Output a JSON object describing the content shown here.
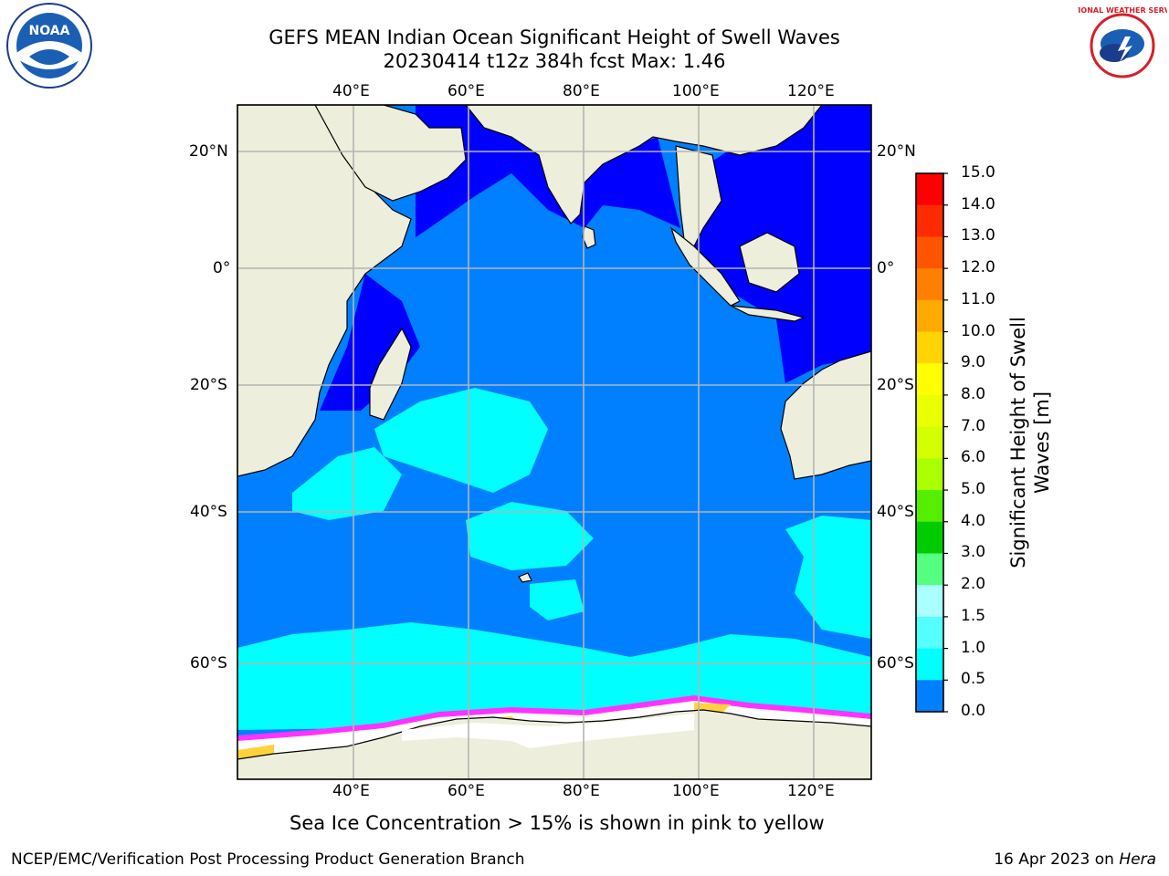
{
  "title": {
    "line1": "GEFS MEAN Indian Ocean Significant Height of Swell Waves",
    "line2": "20230414 t12z 384h fcst   Max: 1.46"
  },
  "logos": {
    "left": {
      "icon": "noaa-logo-icon",
      "text": "NOAA"
    },
    "right": {
      "icon": "nws-logo-icon",
      "text": "NATIONAL WEATHER SERVICE"
    }
  },
  "map": {
    "lon_ticks": [
      "40°E",
      "60°E",
      "80°E",
      "100°E",
      "120°E"
    ],
    "lat_ticks_left": [
      "20°N",
      "0°",
      "20°S",
      "40°S",
      "60°S"
    ],
    "lat_ticks_right": [
      "20°N",
      "0°",
      "20°S",
      "40°S",
      "60°S"
    ],
    "colors": {
      "land": "#eeeedc",
      "swell_0_0_5": "#0000ff",
      "swell_0_5_1_0": "#0080ff",
      "swell_1_0_1_5": "#00ffff",
      "sea_ice_white": "#ffffff",
      "sea_ice_pink": "#ff33ff",
      "sea_ice_yellow": "#ffd23c",
      "grid": "#b4b4b4"
    }
  },
  "colorbar": {
    "label_line1": "Significant Height of Swell",
    "label_line2": "Waves [m]",
    "ticks": [
      "15.0",
      "14.0",
      "13.0",
      "12.0",
      "11.0",
      "10.0",
      "9.0",
      "8.0",
      "7.0",
      "6.0",
      "5.0",
      "4.0",
      "3.0",
      "2.0",
      "1.5",
      "1.0",
      "0.5",
      "0.0"
    ],
    "colors_top_to_bottom": [
      "#ff0000",
      "#ff2a00",
      "#ff5500",
      "#ff7f00",
      "#ffaa00",
      "#ffd400",
      "#ffff00",
      "#eaff00",
      "#d4ff00",
      "#aaff00",
      "#55ee00",
      "#00cc00",
      "#55ff80",
      "#aaffff",
      "#55ffff",
      "#00ffff",
      "#0080ff",
      "#0000ff"
    ]
  },
  "note": "Sea Ice Concentration > 15% is shown in pink to yellow",
  "footer": {
    "left": "NCEP/EMC/Verification Post Processing Product Generation Branch",
    "right_date": "16 Apr 2023 on ",
    "right_machine": "Hera"
  }
}
